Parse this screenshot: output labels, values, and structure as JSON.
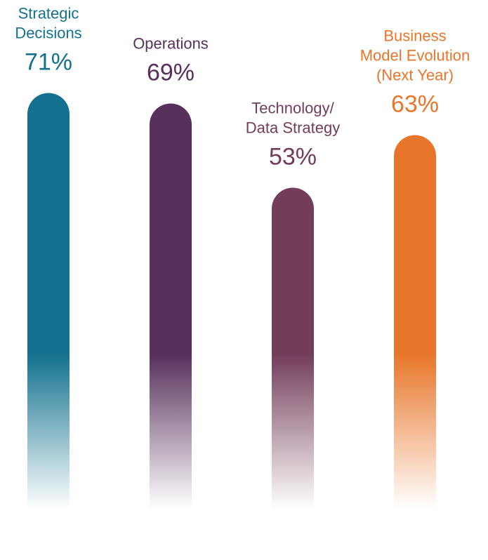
{
  "chart_data": {
    "type": "bar",
    "categories": [
      [
        "Strategic",
        "Decisions"
      ],
      [
        "Operations"
      ],
      [
        "Technology/",
        "Data Strategy"
      ],
      [
        "Business",
        "Model Evolution",
        "(Next Year)"
      ]
    ],
    "values": [
      71,
      69,
      53,
      63
    ],
    "value_labels": [
      "71%",
      "69%",
      "53%",
      "63%"
    ],
    "colors": [
      "#13718f",
      "#57305c",
      "#733d5a",
      "#e8762a"
    ]
  }
}
